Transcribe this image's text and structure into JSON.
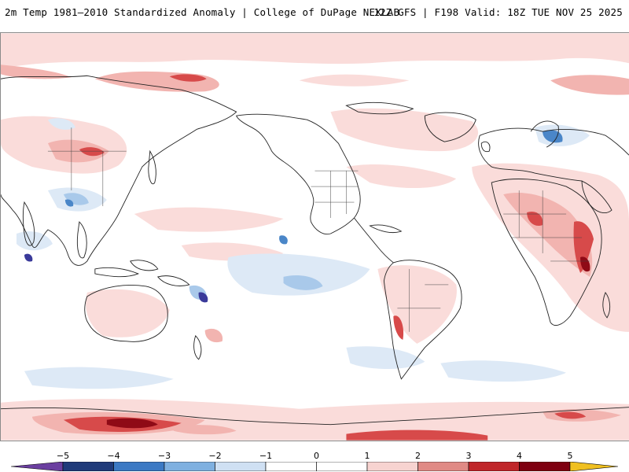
{
  "header": {
    "title_left": "2m Temp 1981–2010 Standardized Anomaly | College of DuPage NEXLAB",
    "title_right": "12Z GFS | F198 Valid: 18Z TUE NOV 25 2025"
  },
  "colorbar": {
    "ticks": [
      "−5",
      "−4",
      "−3",
      "−2",
      "−1",
      "0",
      "1",
      "2",
      "3",
      "4",
      "5"
    ],
    "colors": [
      "#6b3fa0",
      "#1f3a7a",
      "#3b79c4",
      "#7fb0e0",
      "#cfe0f3",
      "#ffffff",
      "#ffffff",
      "#f7d3d0",
      "#e08a85",
      "#c0262a",
      "#7f0010",
      "#f0c020"
    ]
  },
  "map": {
    "colors": {
      "warm_light": "#fadcda",
      "warm_mid": "#f2b4b0",
      "warm_strong": "#d74a4a",
      "warm_extreme": "#8f0a16",
      "cool_light": "#dde9f6",
      "cool_mid": "#a9c9ea",
      "cool_strong": "#4a86c8",
      "cool_extreme": "#3a3a9a",
      "coastline": "#222222"
    }
  }
}
